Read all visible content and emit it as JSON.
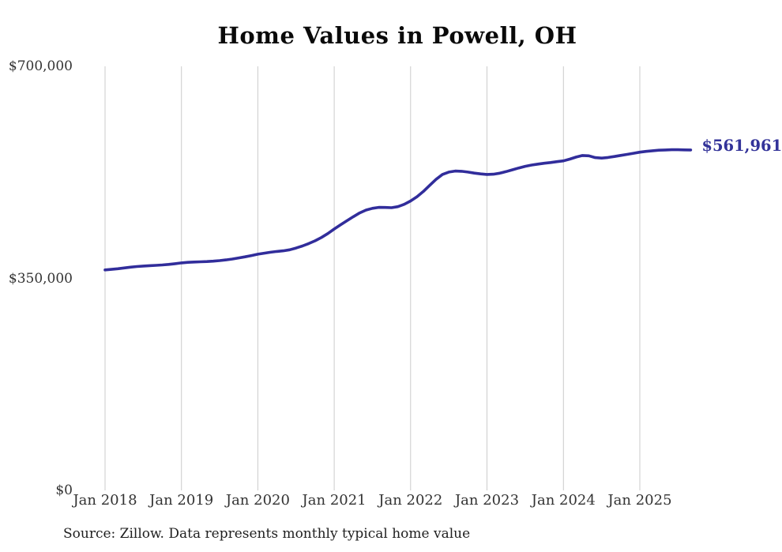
{
  "chart": {
    "title": "Home Values in Powell, OH",
    "end_label": "$561,961",
    "source_note": "Source: Zillow. Data represents monthly typical home value",
    "colors": {
      "line": "#312d9b",
      "end_label": "#333399",
      "grid": "#cbcbcb",
      "axis_text": "#333333",
      "title_text": "#0a0a0a",
      "source_text": "#1f1f1f",
      "background": "#ffffff"
    }
  },
  "chart_data": {
    "type": "line",
    "title": "Home Values in Powell, OH",
    "xlabel": "",
    "ylabel": "",
    "ylim": [
      0,
      700000
    ],
    "grid": "vertical-only",
    "legend": "none",
    "x_tick_labels": [
      "Jan 2018",
      "Jan 2019",
      "Jan 2020",
      "Jan 2021",
      "Jan 2022",
      "Jan 2023",
      "Jan 2024",
      "Jan 2025"
    ],
    "y_tick_labels": [
      "$0",
      "$350,000",
      "$700,000"
    ],
    "y_tick_values": [
      0,
      350000,
      700000
    ],
    "final_value": 561961,
    "final_value_label": "$561,961",
    "source": "Source: Zillow. Data represents monthly typical home value",
    "series": [
      {
        "name": "Monthly typical home value",
        "start_month": "2018-01",
        "end_month": "2025-09",
        "values": [
          364000,
          364800,
          365900,
          367200,
          368500,
          369600,
          370400,
          371000,
          371500,
          372100,
          373100,
          374300,
          375600,
          376400,
          377000,
          377400,
          377800,
          378400,
          379300,
          380500,
          382000,
          383700,
          385600,
          387700,
          389900,
          391600,
          393100,
          394400,
          395500,
          397200,
          400000,
          403500,
          407500,
          412000,
          417500,
          424000,
          431500,
          438500,
          445200,
          451800,
          458000,
          462800,
          465600,
          467200,
          467000,
          466700,
          468400,
          472300,
          477800,
          484800,
          493500,
          503500,
          513500,
          521500,
          525500,
          527200,
          526800,
          525400,
          523800,
          522500,
          521600,
          522000,
          523600,
          526200,
          529200,
          532200,
          535000,
          537000,
          538600,
          540000,
          541200,
          542600,
          544000,
          546800,
          550200,
          552800,
          552300,
          549300,
          548500,
          549600,
          551200,
          552900,
          554600,
          556500,
          558300,
          559600,
          560700,
          561500,
          562000,
          562300,
          562300,
          562100,
          561961
        ]
      }
    ]
  }
}
